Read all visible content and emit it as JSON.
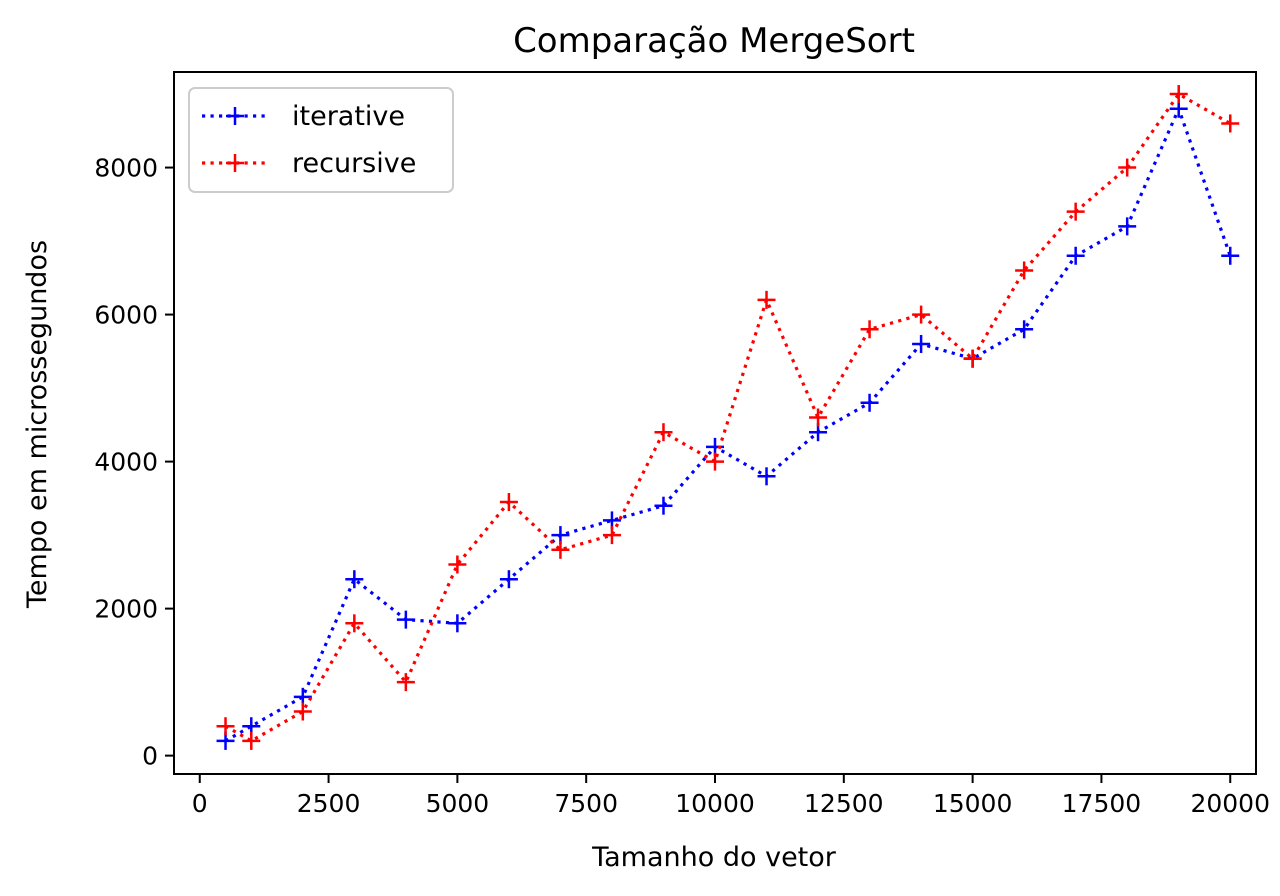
{
  "chart_data": {
    "type": "line",
    "title": "Comparação MergeSort",
    "xlabel": "Tamanho do vetor",
    "ylabel": "Tempo em microssegundos",
    "xlim": [
      -500,
      20500
    ],
    "ylim": [
      -250,
      9300
    ],
    "xticks": [
      0,
      2500,
      5000,
      7500,
      10000,
      12500,
      15000,
      17500,
      20000
    ],
    "yticks": [
      0,
      2000,
      4000,
      6000,
      8000
    ],
    "grid": false,
    "legend_position": "top-left",
    "series": [
      {
        "name": "iterative",
        "color": "#0000ff",
        "marker": "+",
        "linestyle": "dotted",
        "x": [
          500,
          1000,
          2000,
          3000,
          4000,
          5000,
          6000,
          7000,
          8000,
          9000,
          10000,
          11000,
          12000,
          13000,
          14000,
          15000,
          16000,
          17000,
          18000,
          19000,
          20000
        ],
        "y": [
          200,
          400,
          800,
          2400,
          1850,
          1800,
          2400,
          3000,
          3200,
          3400,
          4200,
          3800,
          4400,
          4800,
          5600,
          5400,
          5800,
          6800,
          7200,
          8800,
          6800
        ]
      },
      {
        "name": "recursive",
        "color": "#ff0000",
        "marker": "+",
        "linestyle": "dotted",
        "x": [
          500,
          1000,
          2000,
          3000,
          4000,
          5000,
          6000,
          7000,
          8000,
          9000,
          10000,
          11000,
          12000,
          13000,
          14000,
          15000,
          16000,
          17000,
          18000,
          19000,
          20000
        ],
        "y": [
          400,
          200,
          600,
          1800,
          1000,
          2600,
          3450,
          2800,
          3000,
          4400,
          4000,
          6200,
          4600,
          5800,
          6000,
          5400,
          6600,
          7400,
          8000,
          9000,
          8600
        ]
      }
    ]
  }
}
